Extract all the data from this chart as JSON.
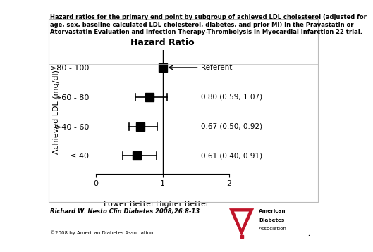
{
  "title_line1": "Hazard ratios for the primary end point by subgroup of achieved LDL cholesterol (adjusted for",
  "title_line2": "age, sex, baseline calculated LDL cholesterol, diabetes, and prior MI) in the Pravastatin or",
  "title_line3": "Atorvastatin Evaluation and Infection Therapy-Thrombolysis in Myocardial Infarction 22 trial.",
  "xlabel_left": "Lower Better",
  "xlabel_right": "Higher Better",
  "ylabel": "Achieved LDL (mg/dl)",
  "plot_title": "Hazard Ratio",
  "categories": [
    ">80 - 100",
    ">60 - 80",
    ">40 - 60",
    "≤ 40"
  ],
  "hr": [
    1.0,
    0.8,
    0.67,
    0.61
  ],
  "ci_low": [
    1.0,
    0.59,
    0.5,
    0.4
  ],
  "ci_high": [
    1.0,
    1.07,
    0.92,
    0.91
  ],
  "labels": [
    "Referent",
    "0.80 (0.59, 1.07)",
    "0.67 (0.50, 0.92)",
    "0.61 (0.40, 0.91)"
  ],
  "xticks": [
    0,
    1,
    2
  ],
  "footnote": "Richard W. Nesto Clin Diabetes 2008;26:8-13",
  "copyright": "©2008 by American Diabetes Association",
  "marker_color": "#000000",
  "marker_size": 8,
  "line_color": "#000000"
}
